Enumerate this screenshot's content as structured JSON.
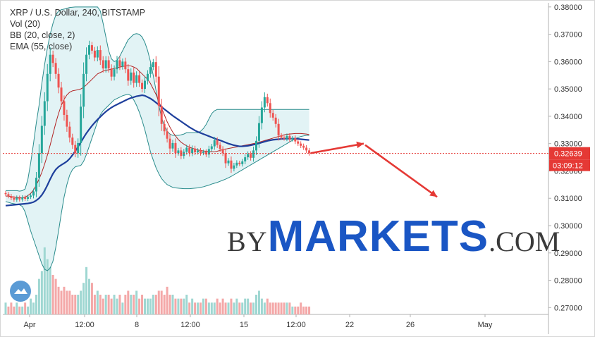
{
  "legend": {
    "symbol": "XRP / U.S. Dollar, 240, BITSTAMP",
    "vol": "Vol (20)",
    "bb": "BB (20, close, 2)",
    "ema": "EMA (55, close)"
  },
  "watermark": {
    "by": "BY",
    "markets": "MARKETS",
    "com": ".COM"
  },
  "logo_icon": "tradingview-logo-icon",
  "colors": {
    "up": "#26a69a",
    "down": "#ef5350",
    "bb_band": "#2a8c8c",
    "bb_fill": "#dff2f4",
    "bb_mid": "#b22222",
    "ema": "#1e3f9c",
    "price_line": "#e53935",
    "arrow": "#e53935",
    "axis_text": "#333333",
    "vol_up": "#9fd7d2",
    "vol_down": "#f4a8a8"
  },
  "chart_data": {
    "type": "candlestick",
    "title": "XRP / U.S. Dollar, 240, BITSTAMP",
    "x_tick_labels": [
      "Apr",
      "12:00",
      "8",
      "12:00",
      "15",
      "12:00",
      "22",
      "26",
      "May"
    ],
    "y_tick_labels": [
      "0.38000",
      "0.37000",
      "0.36000",
      "0.35000",
      "0.34000",
      "0.33000",
      "0.32000",
      "0.31000",
      "0.30000",
      "0.29000",
      "0.28000",
      "0.27000"
    ],
    "ylim": [
      0.2675,
      0.3815
    ],
    "current_price": "0.32639",
    "countdown": "03:09:12",
    "close": [
      0.3115,
      0.3108,
      0.3101,
      0.3095,
      0.3102,
      0.3096,
      0.3103,
      0.3098,
      0.3105,
      0.311,
      0.3125,
      0.3175,
      0.3265,
      0.3365,
      0.3455,
      0.3555,
      0.3625,
      0.3595,
      0.3555,
      0.3505,
      0.3455,
      0.3405,
      0.3362,
      0.3322,
      0.3295,
      0.3265,
      0.3302,
      0.3435,
      0.3555,
      0.3625,
      0.366,
      0.364,
      0.3615,
      0.3642,
      0.3605,
      0.3575,
      0.3605,
      0.3575,
      0.3545,
      0.3572,
      0.3605,
      0.3582,
      0.36,
      0.3572,
      0.353,
      0.356,
      0.3522,
      0.355,
      0.3522,
      0.35,
      0.353,
      0.3555,
      0.358,
      0.3598,
      0.3545,
      0.3438,
      0.3372,
      0.3345,
      0.3318,
      0.3282,
      0.3302,
      0.3265,
      0.3275,
      0.3255,
      0.327,
      0.3285,
      0.3265,
      0.3282,
      0.3268,
      0.3275,
      0.3265,
      0.327,
      0.326,
      0.328,
      0.329,
      0.3312,
      0.3295,
      0.328,
      0.3265,
      0.3228,
      0.3238,
      0.3208,
      0.322,
      0.323,
      0.3225,
      0.3235,
      0.325,
      0.3262,
      0.3248,
      0.3275,
      0.331,
      0.3375,
      0.3432,
      0.347,
      0.3448,
      0.3412,
      0.3395,
      0.3372,
      0.333,
      0.3322,
      0.3318,
      0.3328,
      0.3315,
      0.332,
      0.3308,
      0.33,
      0.3292,
      0.3285,
      0.3275,
      0.3265
    ],
    "volume": [
      3,
      2,
      3,
      2,
      3,
      2,
      2,
      3,
      2,
      4,
      3,
      5,
      9,
      11,
      17,
      14,
      12,
      10,
      9,
      7,
      6,
      7,
      6,
      6,
      5,
      5,
      5,
      6,
      8,
      12,
      9,
      8,
      5,
      6,
      5,
      4,
      5,
      5,
      4,
      5,
      4,
      5,
      3,
      5,
      6,
      5,
      5,
      6,
      4,
      5,
      4,
      4,
      4,
      5,
      5,
      6,
      6,
      5,
      7,
      5,
      5,
      4,
      4,
      4,
      4,
      5,
      3,
      4,
      3,
      3,
      3,
      4,
      4,
      3,
      3,
      3,
      4,
      3,
      4,
      3,
      3,
      4,
      3,
      4,
      3,
      3,
      4,
      4,
      3,
      3,
      5,
      6,
      4,
      3,
      4,
      3,
      3,
      3,
      3,
      3,
      3,
      3,
      3,
      2,
      2,
      2,
      3,
      2,
      2,
      2
    ],
    "bb_upper": [
      0.3128,
      0.3128,
      0.3128,
      0.3128,
      0.3128,
      0.3126,
      0.3128,
      0.3134,
      0.317,
      0.323,
      0.33,
      0.3375,
      0.344,
      0.352,
      0.359,
      0.365,
      0.37,
      0.374,
      0.377,
      0.3785,
      0.379,
      0.3792,
      0.3795,
      0.3798,
      0.3799,
      0.38,
      0.38,
      0.38,
      0.38,
      0.38,
      0.38,
      0.38,
      0.38,
      0.38,
      0.3785,
      0.374,
      0.369,
      0.364,
      0.361,
      0.36,
      0.3605,
      0.362,
      0.364,
      0.366,
      0.368,
      0.369,
      0.37,
      0.3702,
      0.37,
      0.369,
      0.367,
      0.364,
      0.36,
      0.355,
      0.3495,
      0.344,
      0.3395,
      0.3365,
      0.3345,
      0.3335,
      0.333,
      0.333,
      0.333,
      0.3332,
      0.3335,
      0.334,
      0.334,
      0.334,
      0.334,
      0.334,
      0.3345,
      0.3355,
      0.337,
      0.339,
      0.341,
      0.342,
      0.3425,
      0.3425,
      0.3425,
      0.3425,
      0.3425,
      0.3425,
      0.3425,
      0.3425,
      0.3425,
      0.3425,
      0.3425,
      0.3425,
      0.3425,
      0.3425,
      0.3425,
      0.3425,
      0.3425,
      0.3425,
      0.3425,
      0.3425,
      0.3425,
      0.3425,
      0.3425,
      0.3425,
      0.3425,
      0.3425,
      0.3425,
      0.3425,
      0.3425,
      0.3425,
      0.3425,
      0.3425,
      0.3425,
      0.3425
    ],
    "bb_basis": [
      0.3108,
      0.3108,
      0.3106,
      0.3104,
      0.3103,
      0.3102,
      0.3102,
      0.3104,
      0.311,
      0.3118,
      0.313,
      0.3148,
      0.317,
      0.3195,
      0.3225,
      0.3258,
      0.3295,
      0.3335,
      0.3375,
      0.341,
      0.344,
      0.3462,
      0.3478,
      0.3488,
      0.3493,
      0.3495,
      0.3497,
      0.35,
      0.3506,
      0.3515,
      0.3525,
      0.3535,
      0.3545,
      0.3555,
      0.356,
      0.3565,
      0.3568,
      0.357,
      0.3572,
      0.3575,
      0.3578,
      0.358,
      0.3582,
      0.3584,
      0.3585,
      0.3584,
      0.358,
      0.3575,
      0.3565,
      0.3555,
      0.3545,
      0.3535,
      0.352,
      0.35,
      0.348,
      0.3455,
      0.343,
      0.3405,
      0.338,
      0.336,
      0.3342,
      0.3328,
      0.3315,
      0.3305,
      0.3298,
      0.3292,
      0.3287,
      0.3283,
      0.328,
      0.3277,
      0.3275,
      0.3273,
      0.3272,
      0.3271,
      0.327,
      0.327,
      0.3272,
      0.3275,
      0.3278,
      0.328,
      0.3282,
      0.3284,
      0.3286,
      0.3288,
      0.329,
      0.3292,
      0.3294,
      0.3296,
      0.3298,
      0.33,
      0.3302,
      0.3305,
      0.3308,
      0.3311,
      0.3314,
      0.3317,
      0.332,
      0.3323,
      0.3326,
      0.3329,
      0.3332,
      0.3334,
      0.3335,
      0.3336,
      0.3337,
      0.3337,
      0.3337,
      0.3336,
      0.3335,
      0.3333
    ],
    "bb_lower": [
      0.3088,
      0.3085,
      0.3082,
      0.308,
      0.3078,
      0.3076,
      0.307,
      0.305,
      0.3015,
      0.298,
      0.295,
      0.292,
      0.289,
      0.286,
      0.284,
      0.2835,
      0.2845,
      0.287,
      0.292,
      0.298,
      0.3045,
      0.3105,
      0.315,
      0.3185,
      0.3205,
      0.3215,
      0.3218,
      0.322,
      0.3235,
      0.326,
      0.329,
      0.332,
      0.335,
      0.338,
      0.3405,
      0.342,
      0.343,
      0.344,
      0.345,
      0.346,
      0.3465,
      0.347,
      0.3475,
      0.3478,
      0.348,
      0.3476,
      0.346,
      0.344,
      0.3415,
      0.3385,
      0.335,
      0.331,
      0.327,
      0.324,
      0.3212,
      0.319,
      0.3172,
      0.316,
      0.315,
      0.3145,
      0.314,
      0.3138,
      0.3137,
      0.3136,
      0.3135,
      0.3135,
      0.3135,
      0.3136,
      0.3137,
      0.3138,
      0.314,
      0.3142,
      0.3145,
      0.3148,
      0.3152,
      0.3155,
      0.3158,
      0.3162,
      0.3166,
      0.317,
      0.3175,
      0.318,
      0.3186,
      0.3192,
      0.3198,
      0.3204,
      0.321,
      0.3216,
      0.3222,
      0.3228,
      0.3234,
      0.324,
      0.3246,
      0.3252,
      0.3258,
      0.3264,
      0.327,
      0.3276,
      0.3282,
      0.3288,
      0.3294,
      0.33,
      0.3306,
      0.3312,
      0.3318,
      0.3322,
      0.3326,
      0.3328,
      0.333,
      0.333
    ],
    "ema": [
      0.3073,
      0.3074,
      0.3075,
      0.3076,
      0.3077,
      0.3078,
      0.3079,
      0.308,
      0.3081,
      0.3083,
      0.3086,
      0.3092,
      0.31,
      0.3112,
      0.3128,
      0.3148,
      0.317,
      0.319,
      0.3205,
      0.3215,
      0.3222,
      0.3228,
      0.3235,
      0.3245,
      0.3258,
      0.3272,
      0.3288,
      0.3305,
      0.3322,
      0.3338,
      0.3352,
      0.3365,
      0.3377,
      0.3388,
      0.3398,
      0.3408,
      0.3417,
      0.3425,
      0.3432,
      0.3438,
      0.3443,
      0.3448,
      0.3453,
      0.3458,
      0.3463,
      0.3467,
      0.347,
      0.3473,
      0.3475,
      0.3477,
      0.3475,
      0.347,
      0.3465,
      0.3458,
      0.345,
      0.3442,
      0.3434,
      0.3426,
      0.3418,
      0.341,
      0.3402,
      0.3395,
      0.3388,
      0.3381,
      0.3374,
      0.3367,
      0.336,
      0.3354,
      0.3348,
      0.3343,
      0.3339,
      0.3335,
      0.3331,
      0.3327,
      0.3323,
      0.3319,
      0.3315,
      0.3312,
      0.3308,
      0.3304,
      0.33,
      0.3297,
      0.3294,
      0.3292,
      0.329,
      0.329,
      0.3291,
      0.3292,
      0.3294,
      0.3296,
      0.3298,
      0.3301,
      0.3304,
      0.3307,
      0.331,
      0.3312,
      0.3314,
      0.3315,
      0.3316,
      0.3317,
      0.3318,
      0.3318,
      0.3318,
      0.3318,
      0.3318,
      0.3317,
      0.3316,
      0.3315,
      0.3314,
      0.3313
    ],
    "forecast_arrow": {
      "from": {
        "date": "Apr 22",
        "price": 0.33
      },
      "to": {
        "date": "Apr 28",
        "price": 0.3105
      }
    }
  }
}
